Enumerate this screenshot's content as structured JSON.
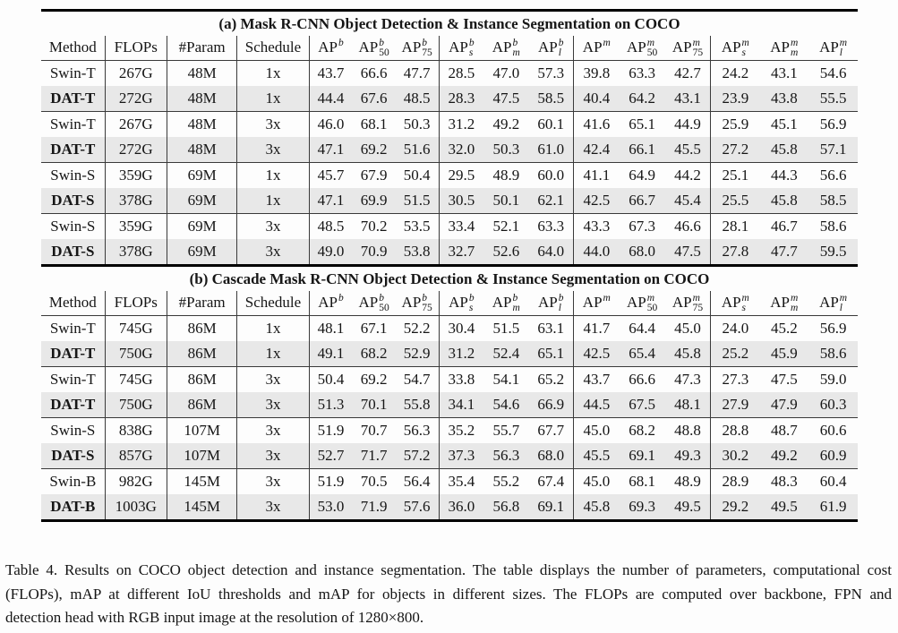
{
  "columns": {
    "meta": [
      "Method",
      "FLOPs",
      "#Param",
      "Schedule"
    ],
    "ap_base": "AP",
    "ap": [
      {
        "sup": "b",
        "sub": ""
      },
      {
        "sup": "b",
        "sub": "50"
      },
      {
        "sup": "b",
        "sub": "75"
      },
      {
        "sup": "b",
        "sub": "s"
      },
      {
        "sup": "b",
        "sub": "m"
      },
      {
        "sup": "b",
        "sub": "l"
      },
      {
        "sup": "m",
        "sub": ""
      },
      {
        "sup": "m",
        "sub": "50"
      },
      {
        "sup": "m",
        "sub": "75"
      },
      {
        "sup": "m",
        "sub": "s"
      },
      {
        "sup": "m",
        "sub": "m"
      },
      {
        "sup": "m",
        "sub": "l"
      }
    ]
  },
  "styles": {
    "shade_color": "#e8e8e8",
    "rule_color": "#000000",
    "line_color": "#3a3a3a"
  },
  "tables": [
    {
      "title": "(a) Mask R-CNN Object Detection & Instance Segmentation on COCO",
      "rows": [
        {
          "method": "Swin-T",
          "flops": "267G",
          "param": "48M",
          "schedule": "1x",
          "highlight": false,
          "values": [
            "43.7",
            "66.6",
            "47.7",
            "28.5",
            "47.0",
            "57.3",
            "39.8",
            "63.3",
            "42.7",
            "24.2",
            "43.1",
            "54.6"
          ]
        },
        {
          "method": "DAT-T",
          "flops": "272G",
          "param": "48M",
          "schedule": "1x",
          "highlight": true,
          "values": [
            "44.4",
            "67.6",
            "48.5",
            "28.3",
            "47.5",
            "58.5",
            "40.4",
            "64.2",
            "43.1",
            "23.9",
            "43.8",
            "55.5"
          ]
        },
        {
          "method": "Swin-T",
          "flops": "267G",
          "param": "48M",
          "schedule": "3x",
          "highlight": false,
          "values": [
            "46.0",
            "68.1",
            "50.3",
            "31.2",
            "49.2",
            "60.1",
            "41.6",
            "65.1",
            "44.9",
            "25.9",
            "45.1",
            "56.9"
          ]
        },
        {
          "method": "DAT-T",
          "flops": "272G",
          "param": "48M",
          "schedule": "3x",
          "highlight": true,
          "values": [
            "47.1",
            "69.2",
            "51.6",
            "32.0",
            "50.3",
            "61.0",
            "42.4",
            "66.1",
            "45.5",
            "27.2",
            "45.8",
            "57.1"
          ]
        },
        {
          "method": "Swin-S",
          "flops": "359G",
          "param": "69M",
          "schedule": "1x",
          "highlight": false,
          "values": [
            "45.7",
            "67.9",
            "50.4",
            "29.5",
            "48.9",
            "60.0",
            "41.1",
            "64.9",
            "44.2",
            "25.1",
            "44.3",
            "56.6"
          ]
        },
        {
          "method": "DAT-S",
          "flops": "378G",
          "param": "69M",
          "schedule": "1x",
          "highlight": true,
          "values": [
            "47.1",
            "69.9",
            "51.5",
            "30.5",
            "50.1",
            "62.1",
            "42.5",
            "66.7",
            "45.4",
            "25.5",
            "45.8",
            "58.5"
          ]
        },
        {
          "method": "Swin-S",
          "flops": "359G",
          "param": "69M",
          "schedule": "3x",
          "highlight": false,
          "values": [
            "48.5",
            "70.2",
            "53.5",
            "33.4",
            "52.1",
            "63.3",
            "43.3",
            "67.3",
            "46.6",
            "28.1",
            "46.7",
            "58.6"
          ]
        },
        {
          "method": "DAT-S",
          "flops": "378G",
          "param": "69M",
          "schedule": "3x",
          "highlight": true,
          "values": [
            "49.0",
            "70.9",
            "53.8",
            "32.7",
            "52.6",
            "64.0",
            "44.0",
            "68.0",
            "47.5",
            "27.8",
            "47.7",
            "59.5"
          ]
        }
      ]
    },
    {
      "title": "(b) Cascade Mask R-CNN Object Detection & Instance Segmentation on COCO",
      "rows": [
        {
          "method": "Swin-T",
          "flops": "745G",
          "param": "86M",
          "schedule": "1x",
          "highlight": false,
          "values": [
            "48.1",
            "67.1",
            "52.2",
            "30.4",
            "51.5",
            "63.1",
            "41.7",
            "64.4",
            "45.0",
            "24.0",
            "45.2",
            "56.9"
          ]
        },
        {
          "method": "DAT-T",
          "flops": "750G",
          "param": "86M",
          "schedule": "1x",
          "highlight": true,
          "values": [
            "49.1",
            "68.2",
            "52.9",
            "31.2",
            "52.4",
            "65.1",
            "42.5",
            "65.4",
            "45.8",
            "25.2",
            "45.9",
            "58.6"
          ]
        },
        {
          "method": "Swin-T",
          "flops": "745G",
          "param": "86M",
          "schedule": "3x",
          "highlight": false,
          "values": [
            "50.4",
            "69.2",
            "54.7",
            "33.8",
            "54.1",
            "65.2",
            "43.7",
            "66.6",
            "47.3",
            "27.3",
            "47.5",
            "59.0"
          ]
        },
        {
          "method": "DAT-T",
          "flops": "750G",
          "param": "86M",
          "schedule": "3x",
          "highlight": true,
          "values": [
            "51.3",
            "70.1",
            "55.8",
            "34.1",
            "54.6",
            "66.9",
            "44.5",
            "67.5",
            "48.1",
            "27.9",
            "47.9",
            "60.3"
          ]
        },
        {
          "method": "Swin-S",
          "flops": "838G",
          "param": "107M",
          "schedule": "3x",
          "highlight": false,
          "values": [
            "51.9",
            "70.7",
            "56.3",
            "35.2",
            "55.7",
            "67.7",
            "45.0",
            "68.2",
            "48.8",
            "28.8",
            "48.7",
            "60.6"
          ]
        },
        {
          "method": "DAT-S",
          "flops": "857G",
          "param": "107M",
          "schedule": "3x",
          "highlight": true,
          "values": [
            "52.7",
            "71.7",
            "57.2",
            "37.3",
            "56.3",
            "68.0",
            "45.5",
            "69.1",
            "49.3",
            "30.2",
            "49.2",
            "60.9"
          ]
        },
        {
          "method": "Swin-B",
          "flops": "982G",
          "param": "145M",
          "schedule": "3x",
          "highlight": false,
          "values": [
            "51.9",
            "70.5",
            "56.4",
            "35.4",
            "55.2",
            "67.4",
            "45.0",
            "68.1",
            "48.9",
            "28.9",
            "48.3",
            "60.4"
          ]
        },
        {
          "method": "DAT-B",
          "flops": "1003G",
          "param": "145M",
          "schedule": "3x",
          "highlight": true,
          "values": [
            "53.0",
            "71.9",
            "57.6",
            "36.0",
            "56.8",
            "69.1",
            "45.8",
            "69.3",
            "49.5",
            "29.2",
            "49.5",
            "61.9"
          ]
        }
      ]
    }
  ],
  "caption": {
    "lines": [
      "Table 4. Results on COCO object detection and instance segmentation. The table displays the number of parameters, computational cost",
      "(FLOPs), mAP at different IoU thresholds and mAP for objects in different sizes. The FLOPs are computed over backbone, FPN and",
      "detection head with RGB input image at the resolution of 1280×800."
    ]
  }
}
